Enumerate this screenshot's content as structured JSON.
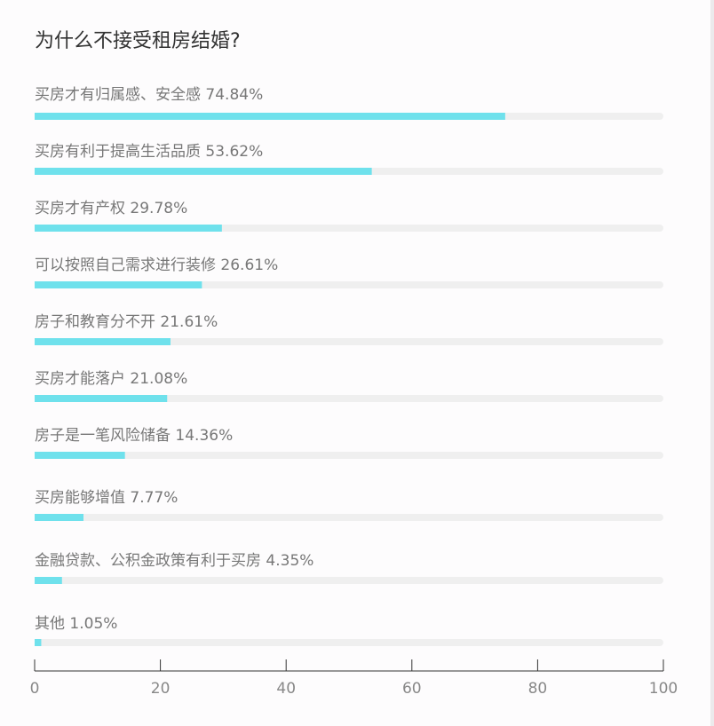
{
  "chart_data": {
    "type": "bar",
    "orientation": "horizontal",
    "title": "为什么不接受租房结婚?",
    "categories": [
      "买房才有归属感、安全感",
      "买房有利于提高生活品质",
      "买房才有产权",
      "可以按照自己需求进行装修",
      "房子和教育分不开",
      "买房才能落户",
      "房子是一笔风险储备",
      "买房能够增值",
      "金融贷款、公积金政策有利于买房",
      "其他"
    ],
    "values": [
      74.84,
      53.62,
      29.78,
      26.61,
      21.61,
      21.08,
      14.36,
      7.77,
      4.35,
      1.05
    ],
    "value_labels": [
      "74.84%",
      "53.62%",
      "29.78%",
      "26.61%",
      "21.61%",
      "21.08%",
      "14.36%",
      "7.77%",
      "4.35%",
      "1.05%"
    ],
    "xlim": [
      0,
      100
    ],
    "xticks": [
      "0",
      "20",
      "40",
      "60",
      "80",
      "100"
    ],
    "bar_color": "#6fe1ec",
    "track_color": "#efefef",
    "axis_color": "#333333",
    "grid": false,
    "legend": "none"
  }
}
